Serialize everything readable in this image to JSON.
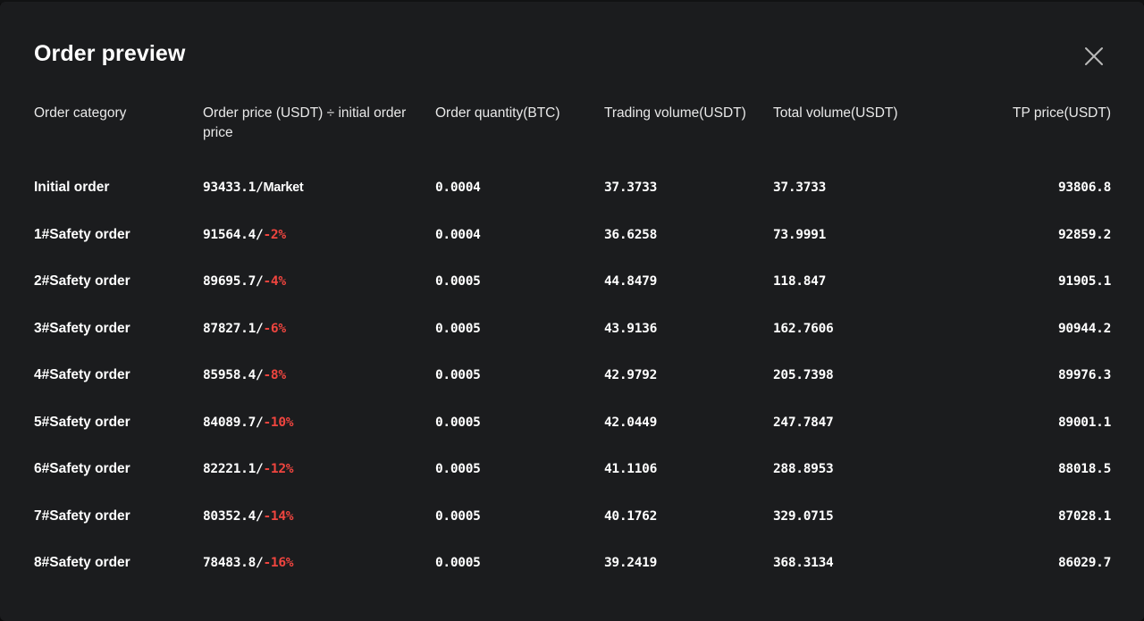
{
  "modal": {
    "title": "Order preview",
    "close_icon": "close-icon"
  },
  "columns": [
    "Order category",
    "Order price (USDT) ÷ initial order price",
    "Order quantity(BTC)",
    "Trading volume(USDT)",
    "Total volume(USDT)",
    "TP price(USDT)"
  ],
  "colors": {
    "background": "#1b1c1e",
    "text": "#ffffff",
    "negative_percent": "#f0453f"
  },
  "rows": [
    {
      "category": "Initial order",
      "price": "93433.1/",
      "pct": "Market",
      "pct_negative": false,
      "quantity": "0.0004",
      "trading_volume": "37.3733",
      "total_volume": "37.3733",
      "tp_price": "93806.8"
    },
    {
      "category": "1#Safety order",
      "price": "91564.4/",
      "pct": "-2%",
      "pct_negative": true,
      "quantity": "0.0004",
      "trading_volume": "36.6258",
      "total_volume": "73.9991",
      "tp_price": "92859.2"
    },
    {
      "category": "2#Safety order",
      "price": "89695.7/",
      "pct": "-4%",
      "pct_negative": true,
      "quantity": "0.0005",
      "trading_volume": "44.8479",
      "total_volume": "118.847",
      "tp_price": "91905.1"
    },
    {
      "category": "3#Safety order",
      "price": "87827.1/",
      "pct": "-6%",
      "pct_negative": true,
      "quantity": "0.0005",
      "trading_volume": "43.9136",
      "total_volume": "162.7606",
      "tp_price": "90944.2"
    },
    {
      "category": "4#Safety order",
      "price": "85958.4/",
      "pct": "-8%",
      "pct_negative": true,
      "quantity": "0.0005",
      "trading_volume": "42.9792",
      "total_volume": "205.7398",
      "tp_price": "89976.3"
    },
    {
      "category": "5#Safety order",
      "price": "84089.7/",
      "pct": "-10%",
      "pct_negative": true,
      "quantity": "0.0005",
      "trading_volume": "42.0449",
      "total_volume": "247.7847",
      "tp_price": "89001.1"
    },
    {
      "category": "6#Safety order",
      "price": "82221.1/",
      "pct": "-12%",
      "pct_negative": true,
      "quantity": "0.0005",
      "trading_volume": "41.1106",
      "total_volume": "288.8953",
      "tp_price": "88018.5"
    },
    {
      "category": "7#Safety order",
      "price": "80352.4/",
      "pct": "-14%",
      "pct_negative": true,
      "quantity": "0.0005",
      "trading_volume": "40.1762",
      "total_volume": "329.0715",
      "tp_price": "87028.1"
    },
    {
      "category": "8#Safety order",
      "price": "78483.8/",
      "pct": "-16%",
      "pct_negative": true,
      "quantity": "0.0005",
      "trading_volume": "39.2419",
      "total_volume": "368.3134",
      "tp_price": "86029.7"
    }
  ]
}
